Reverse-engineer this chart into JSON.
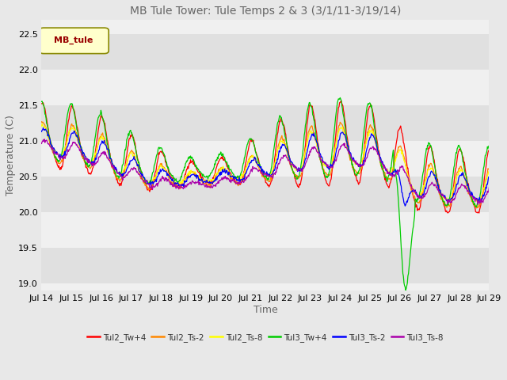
{
  "title": "MB Tule Tower: Tule Temps 2 & 3 (3/1/11-3/19/14)",
  "xlabel": "Time",
  "ylabel": "Temperature (C)",
  "ylim": [
    18.9,
    22.7
  ],
  "xlim": [
    0,
    15
  ],
  "yticks": [
    19.0,
    19.5,
    20.0,
    20.5,
    21.0,
    21.5,
    22.0,
    22.5
  ],
  "xtick_labels": [
    "Jul 14",
    "Jul 15",
    "Jul 16",
    "Jul 17",
    "Jul 18",
    "Jul 19",
    "Jul 20",
    "Jul 21",
    "Jul 22",
    "Jul 23",
    "Jul 24",
    "Jul 25",
    "Jul 26",
    "Jul 27",
    "Jul 28",
    "Jul 29"
  ],
  "legend_label": "MB_tule",
  "series_colors": [
    "#ff0000",
    "#ff8800",
    "#ffff00",
    "#00cc00",
    "#0000ff",
    "#aa00aa"
  ],
  "series_labels": [
    "Tul2_Tw+4",
    "Tul2_Ts-2",
    "Tul2_Ts-8",
    "Tul3_Tw+4",
    "Tul3_Ts-2",
    "Tul3_Ts-8"
  ],
  "bg_outer": "#e8e8e8",
  "bg_plot_light": "#f0f0f0",
  "bg_plot_dark": "#e0e0e0",
  "title_fontsize": 10,
  "axis_fontsize": 9,
  "tick_fontsize": 8,
  "figsize": [
    6.4,
    4.8
  ],
  "dpi": 100
}
